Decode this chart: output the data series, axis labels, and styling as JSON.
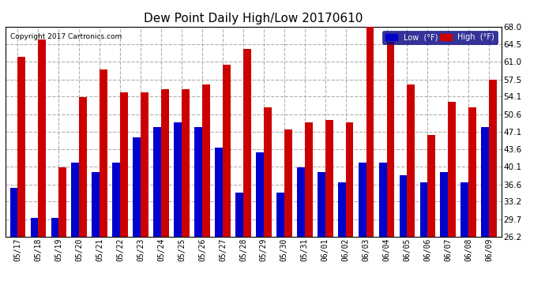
{
  "title": "Dew Point Daily High/Low 20170610",
  "copyright": "Copyright 2017 Cartronics.com",
  "dates": [
    "05/17",
    "05/18",
    "05/19",
    "05/20",
    "05/21",
    "05/22",
    "05/23",
    "05/24",
    "05/25",
    "05/26",
    "05/27",
    "05/28",
    "05/29",
    "05/30",
    "05/31",
    "06/01",
    "06/02",
    "06/03",
    "06/04",
    "06/05",
    "06/06",
    "06/07",
    "06/08",
    "06/09"
  ],
  "low": [
    36.0,
    30.0,
    30.0,
    41.0,
    39.0,
    41.0,
    46.0,
    48.0,
    49.0,
    48.0,
    44.0,
    35.0,
    43.0,
    35.0,
    40.0,
    39.0,
    37.0,
    41.0,
    41.0,
    38.5,
    37.0,
    39.0,
    37.0,
    48.0
  ],
  "high": [
    62.0,
    65.5,
    40.0,
    54.0,
    59.5,
    55.0,
    55.0,
    55.5,
    55.5,
    56.5,
    60.5,
    63.5,
    52.0,
    47.5,
    49.0,
    49.5,
    49.0,
    68.0,
    65.0,
    56.5,
    46.5,
    53.0,
    52.0,
    57.5
  ],
  "low_color": "#0000cc",
  "high_color": "#cc0000",
  "bg_color": "#ffffff",
  "plot_bg_color": "#ffffff",
  "grid_color": "#b0b0b0",
  "ylim": [
    26.2,
    68.0
  ],
  "ymin": 26.2,
  "yticks": [
    26.2,
    29.7,
    33.2,
    36.6,
    40.1,
    43.6,
    47.1,
    50.6,
    54.1,
    57.5,
    61.0,
    64.5,
    68.0
  ],
  "legend_low_label": "Low  (°F)",
  "legend_high_label": "High  (°F)"
}
